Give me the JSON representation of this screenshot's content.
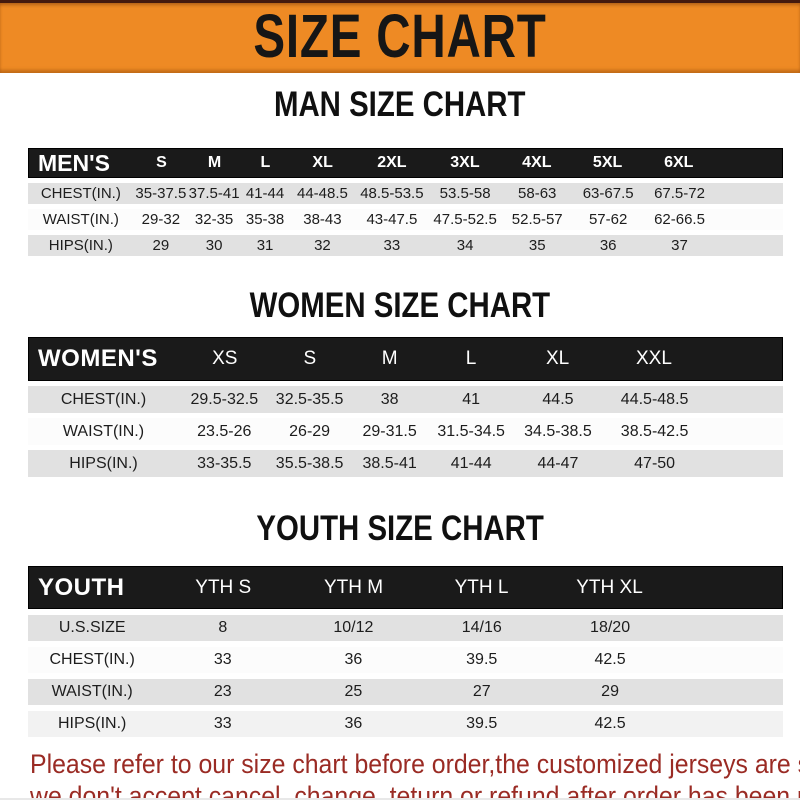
{
  "colors": {
    "banner_bg": "#ee8a24",
    "table_header_bg": "#1a1a1a",
    "row_gray": "#e1e1e1",
    "footer_red": "#9a2b24"
  },
  "banner": {
    "title": "SIZE CHART"
  },
  "men": {
    "heading": "MAN SIZE CHART",
    "header": {
      "label": "MEN'S",
      "sizes": [
        "S",
        "M",
        "L",
        "XL",
        "2XL",
        "3XL",
        "4XL",
        "5XL",
        "6XL"
      ]
    },
    "rows": [
      {
        "label": "CHEST(IN.)",
        "values": [
          "35-37.5",
          "37.5-41",
          "41-44",
          "44-48.5",
          "48.5-53.5",
          "53.5-58",
          "58-63",
          "63-67.5",
          "67.5-72"
        ]
      },
      {
        "label": "WAIST(IN.)",
        "values": [
          "29-32",
          "32-35",
          "35-38",
          "38-43",
          "43-47.5",
          "47.5-52.5",
          "52.5-57",
          "57-62",
          "62-66.5"
        ]
      },
      {
        "label": "HIPS(IN.)",
        "values": [
          "29",
          "30",
          "31",
          "32",
          "33",
          "34",
          "35",
          "36",
          "37"
        ]
      }
    ]
  },
  "women": {
    "heading": "WOMEN SIZE CHART",
    "header": {
      "label": "WOMEN'S",
      "sizes": [
        "XS",
        "S",
        "M",
        "L",
        "XL",
        "XXL"
      ]
    },
    "rows": [
      {
        "label": "CHEST(IN.)",
        "values": [
          "29.5-32.5",
          "32.5-35.5",
          "38",
          "41",
          "44.5",
          "44.5-48.5"
        ]
      },
      {
        "label": "WAIST(IN.)",
        "values": [
          "23.5-26",
          "26-29",
          "29-31.5",
          "31.5-34.5",
          "34.5-38.5",
          "38.5-42.5"
        ]
      },
      {
        "label": "HIPS(IN.)",
        "values": [
          "33-35.5",
          "35.5-38.5",
          "38.5-41",
          "41-44",
          "44-47",
          "47-50"
        ]
      }
    ]
  },
  "youth": {
    "heading": "YOUTH SIZE CHART",
    "header": {
      "label": "YOUTH",
      "sizes": [
        "YTH S",
        "YTH M",
        "YTH L",
        "YTH XL"
      ]
    },
    "rows": [
      {
        "label": "U.S.SIZE",
        "values": [
          "8",
          "10/12",
          "14/16",
          "18/20"
        ]
      },
      {
        "label": "CHEST(IN.)",
        "values": [
          "33",
          "36",
          "39.5",
          "42.5"
        ]
      },
      {
        "label": "WAIST(IN.)",
        "values": [
          "23",
          "25",
          "27",
          "29"
        ]
      },
      {
        "label": "HIPS(IN.)",
        "values": [
          "33",
          "36",
          "39.5",
          "42.5"
        ]
      }
    ]
  },
  "footer": {
    "line1": "Please refer to our size chart before order,the customized jerseys are special products,",
    "line2": "we don't accept cancel, change, teturn or refund after order has been placed!"
  }
}
